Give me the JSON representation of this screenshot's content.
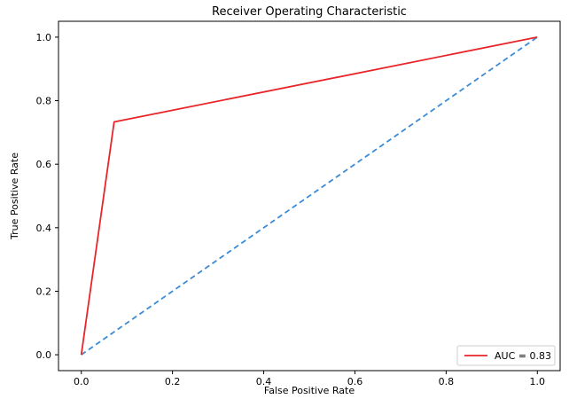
{
  "chart_data": {
    "type": "line",
    "title": "Receiver Operating Characteristic",
    "xlabel": "False Positive Rate",
    "ylabel": "True Positive Rate",
    "xlim": [
      -0.05,
      1.05
    ],
    "ylim": [
      -0.05,
      1.05
    ],
    "x_ticks": [
      0.0,
      0.2,
      0.4,
      0.6,
      0.8,
      1.0
    ],
    "x_tick_labels": [
      "0.0",
      "0.2",
      "0.4",
      "0.6",
      "0.8",
      "1.0"
    ],
    "y_ticks": [
      0.0,
      0.2,
      0.4,
      0.6,
      0.8,
      1.0
    ],
    "y_tick_labels": [
      "0.0",
      "0.2",
      "0.4",
      "0.6",
      "0.8",
      "1.0"
    ],
    "grid": false,
    "legend_position": "bottom-right",
    "series": [
      {
        "name": "AUC = 0.83",
        "color": "#e8262a",
        "style": "solid",
        "x": [
          0.0,
          0.072,
          1.0
        ],
        "y": [
          0.0,
          0.733,
          1.0
        ]
      },
      {
        "color": "#3b8bd6",
        "style": "dashed",
        "x": [
          0.0,
          1.0
        ],
        "y": [
          0.0,
          1.0
        ]
      }
    ]
  }
}
